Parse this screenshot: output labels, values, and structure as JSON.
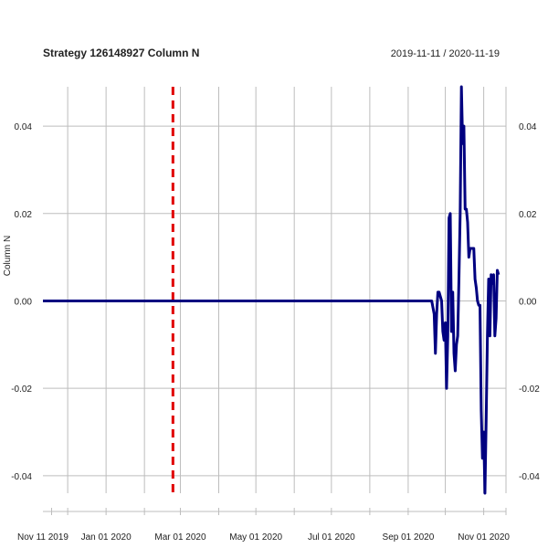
{
  "chart_data": {
    "type": "line",
    "title": "Strategy 126148927 Column N",
    "date_range": "2019-11-11 / 2020-11-19",
    "ylabel": "Column N",
    "xlabel": "",
    "xlim": [
      "2019-11-11",
      "2020-11-19"
    ],
    "ylim": [
      -0.044,
      0.049
    ],
    "grid": true,
    "y_ticks": [
      {
        "value": 0.04,
        "label": "0.04"
      },
      {
        "value": 0.02,
        "label": "0.02"
      },
      {
        "value": 0.0,
        "label": "0.00"
      },
      {
        "value": -0.02,
        "label": "-0.02"
      },
      {
        "value": -0.04,
        "label": "-0.04"
      }
    ],
    "x_labels": [
      {
        "date": "2019-11-11",
        "label": "Nov 11 2019"
      },
      {
        "date": "2020-01-01",
        "label": "Jan 01 2020"
      },
      {
        "date": "2020-03-01",
        "label": "Mar 01 2020"
      },
      {
        "date": "2020-05-01",
        "label": "May 01 2020"
      },
      {
        "date": "2020-07-01",
        "label": "Jul 01 2020"
      },
      {
        "date": "2020-09-01",
        "label": "Sep 01 2020"
      },
      {
        "date": "2020-11-01",
        "label": "Nov 01 2020"
      }
    ],
    "vertical_grid_dates": [
      "2019-12-01",
      "2020-01-01",
      "2020-02-01",
      "2020-03-01",
      "2020-04-01",
      "2020-05-01",
      "2020-06-01",
      "2020-07-01",
      "2020-08-01",
      "2020-09-01",
      "2020-10-01",
      "2020-11-01",
      "2020-11-19"
    ],
    "minor_tick_dates": [
      "2019-11-18",
      "2019-12-01",
      "2020-01-01",
      "2020-02-01",
      "2020-03-01",
      "2020-04-01",
      "2020-05-01",
      "2020-06-01",
      "2020-07-01",
      "2020-08-01",
      "2020-09-01",
      "2020-10-01",
      "2020-11-01",
      "2020-11-19"
    ],
    "event_line": {
      "date": "2020-02-24",
      "color": "#e00000"
    },
    "series": [
      {
        "color": "#000080",
        "points": [
          [
            "2019-11-11",
            0.0
          ],
          [
            "2020-09-20",
            0.0
          ],
          [
            "2020-09-22",
            -0.003
          ],
          [
            "2020-09-23",
            -0.012
          ],
          [
            "2020-09-24",
            -0.003
          ],
          [
            "2020-09-25",
            0.002
          ],
          [
            "2020-09-26",
            0.002
          ],
          [
            "2020-09-28",
            0.0
          ],
          [
            "2020-09-29",
            -0.007
          ],
          [
            "2020-09-30",
            -0.009
          ],
          [
            "2020-10-01",
            -0.005
          ],
          [
            "2020-10-02",
            -0.02
          ],
          [
            "2020-10-03",
            -0.008
          ],
          [
            "2020-10-04",
            0.019
          ],
          [
            "2020-10-05",
            0.02
          ],
          [
            "2020-10-06",
            -0.007
          ],
          [
            "2020-10-07",
            0.002
          ],
          [
            "2020-10-08",
            -0.012
          ],
          [
            "2020-10-09",
            -0.016
          ],
          [
            "2020-10-10",
            -0.01
          ],
          [
            "2020-10-11",
            -0.008
          ],
          [
            "2020-10-12",
            0.005
          ],
          [
            "2020-10-13",
            0.02
          ],
          [
            "2020-10-14",
            0.049
          ],
          [
            "2020-10-15",
            0.036
          ],
          [
            "2020-10-16",
            0.04
          ],
          [
            "2020-10-17",
            0.021
          ],
          [
            "2020-10-18",
            0.021
          ],
          [
            "2020-10-19",
            0.018
          ],
          [
            "2020-10-20",
            0.01
          ],
          [
            "2020-10-21",
            0.012
          ],
          [
            "2020-10-22",
            0.012
          ],
          [
            "2020-10-24",
            0.012
          ],
          [
            "2020-10-25",
            0.005
          ],
          [
            "2020-10-26",
            0.003
          ],
          [
            "2020-10-27",
            0.0
          ],
          [
            "2020-10-28",
            -0.001
          ],
          [
            "2020-10-29",
            -0.001
          ],
          [
            "2020-10-30",
            -0.025
          ],
          [
            "2020-10-31",
            -0.036
          ],
          [
            "2020-11-01",
            -0.03
          ],
          [
            "2020-11-02",
            -0.044
          ],
          [
            "2020-11-03",
            -0.027
          ],
          [
            "2020-11-04",
            -0.008
          ],
          [
            "2020-11-05",
            0.005
          ],
          [
            "2020-11-06",
            -0.008
          ],
          [
            "2020-11-07",
            0.006
          ],
          [
            "2020-11-08",
            0.004
          ],
          [
            "2020-11-09",
            0.006
          ],
          [
            "2020-11-10",
            -0.008
          ],
          [
            "2020-11-11",
            -0.004
          ],
          [
            "2020-11-12",
            0.007
          ],
          [
            "2020-11-13",
            0.006
          ]
        ]
      }
    ]
  }
}
